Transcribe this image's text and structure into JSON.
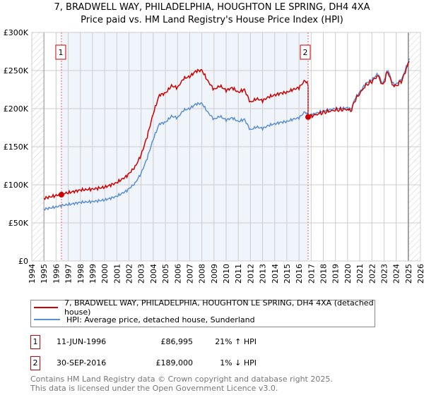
{
  "chart_data": {
    "type": "line",
    "title": "7, BRADWELL WAY, PHILADELPHIA, HOUGHTON LE SPRING, DH4 4XA",
    "subtitle": "Price paid vs. HM Land Registry's House Price Index (HPI)",
    "xlim": [
      1994,
      2026
    ],
    "ylim": [
      0,
      300000
    ],
    "x_ticks": [
      "1994",
      "1995",
      "1996",
      "1997",
      "1998",
      "1999",
      "2000",
      "2001",
      "2002",
      "2003",
      "2004",
      "2005",
      "2006",
      "2007",
      "2008",
      "2009",
      "2010",
      "2011",
      "2012",
      "2013",
      "2014",
      "2015",
      "2016",
      "2017",
      "2018",
      "2019",
      "2020",
      "2021",
      "2022",
      "2023",
      "2024",
      "2025",
      "2026"
    ],
    "y_ticks": [
      {
        "v": 0,
        "label": "£0"
      },
      {
        "v": 50000,
        "label": "£50K"
      },
      {
        "v": 100000,
        "label": "£100K"
      },
      {
        "v": 150000,
        "label": "£150K"
      },
      {
        "v": 200000,
        "label": "£200K"
      },
      {
        "v": 250000,
        "label": "£250K"
      },
      {
        "v": 300000,
        "label": "£300K"
      }
    ],
    "hpi_series": {
      "name": "HPI: Average price, detached house, Sunderland",
      "color": "#5b8fd0",
      "x": [
        1995,
        1996,
        1996.5,
        1997,
        1998,
        1999,
        2000,
        2001,
        2001.8,
        2002.5,
        2003,
        2003.5,
        2004,
        2004.5,
        2005,
        2005.5,
        2006,
        2006.5,
        2007,
        2007.5,
        2008,
        2008.5,
        2009,
        2009.5,
        2010,
        2010.5,
        2011,
        2011.5,
        2012,
        2012.5,
        2013,
        2013.5,
        2014,
        2014.5,
        2015,
        2015.5,
        2016,
        2016.5,
        2016.75,
        2017,
        2018,
        2019,
        2020,
        2020.3,
        2020.6,
        2021,
        2021.5,
        2022,
        2022.5,
        2022.9,
        2023.3,
        2023.7,
        2024,
        2024.5,
        2025,
        2025.1
      ],
      "y": [
        68000,
        71000,
        73000,
        74000,
        77000,
        78000,
        80000,
        85000,
        92000,
        102000,
        115000,
        135000,
        160000,
        180000,
        182000,
        190000,
        188000,
        198000,
        200000,
        206000,
        207000,
        195000,
        186000,
        190000,
        185000,
        188000,
        183000,
        186000,
        172000,
        176000,
        174000,
        178000,
        180000,
        182000,
        183000,
        186000,
        188000,
        196000,
        191000,
        192000,
        197000,
        200000,
        201000,
        199000,
        213000,
        222000,
        233000,
        238000,
        246000,
        232000,
        252000,
        233000,
        232000,
        240000,
        262000,
        265000
      ]
    },
    "price_series": {
      "name": "7, BRADWELL WAY, PHILADELPHIA, HOUGHTON LE SPRING, DH4 4XA (detached house)",
      "color": "#cc0000"
    },
    "sales": [
      {
        "n": "1",
        "date": "11-JUN-1996",
        "x": 1996.44,
        "price": 86995,
        "price_label": "£86,995",
        "hpi_diff": "21% ↑ HPI"
      },
      {
        "n": "2",
        "date": "30-SEP-2016",
        "x": 2016.75,
        "price": 189000,
        "price_label": "£189,000",
        "hpi_diff": "1% ↓ HPI"
      }
    ]
  },
  "legend": {
    "price": "7, BRADWELL WAY, PHILADELPHIA, HOUGHTON LE SPRING, DH4 4XA (detached house)",
    "hpi": "HPI: Average price, detached house, Sunderland"
  },
  "footer": {
    "line1": "Contains HM Land Registry data © Crown copyright and database right 2025.",
    "line2": "This data is licensed under the Open Government Licence v3.0."
  }
}
